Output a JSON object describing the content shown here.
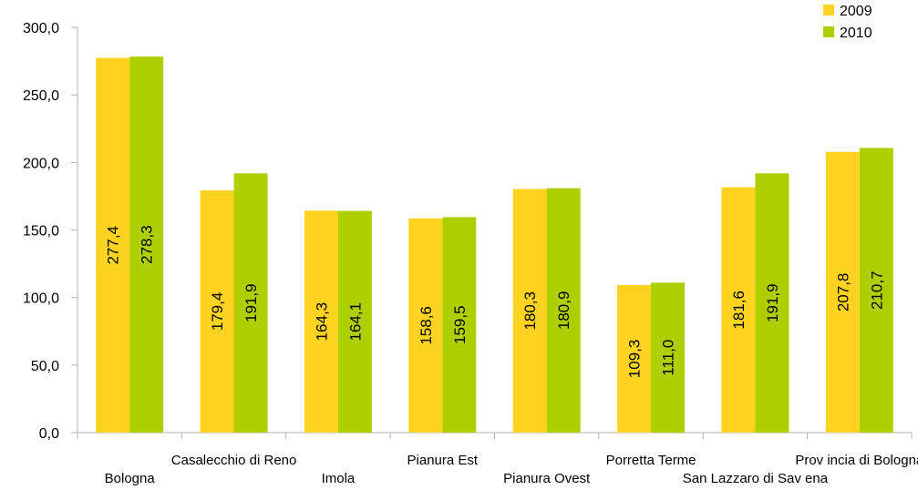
{
  "chart_data": {
    "type": "bar",
    "title": "",
    "xlabel": "",
    "ylabel": "",
    "ylim": [
      0,
      300
    ],
    "yticks": [
      0,
      50,
      100,
      150,
      200,
      250,
      300
    ],
    "ytick_labels": [
      "0,0",
      "50,0",
      "100,0",
      "150,0",
      "200,0",
      "250,0",
      "300,0"
    ],
    "grid": false,
    "legend_position": "top-right",
    "categories": [
      "Bologna",
      "Casalecchio di Reno",
      "Imola",
      "Pianura Est",
      "Pianura Ovest",
      "Porretta Terme",
      "San Lazzaro di Sav ena",
      "Prov incia di Bologna"
    ],
    "series": [
      {
        "name": "2009",
        "color": "#FFD320",
        "values": [
          277.4,
          179.4,
          164.3,
          158.6,
          180.3,
          109.3,
          181.6,
          207.8
        ],
        "labels": [
          "277,4",
          "179,4",
          "164,3",
          "158,6",
          "180,3",
          "109,3",
          "181,6",
          "207,8"
        ]
      },
      {
        "name": "2010",
        "color": "#AECF00",
        "values": [
          278.3,
          191.9,
          164.1,
          159.5,
          180.9,
          111.0,
          191.9,
          210.7
        ],
        "labels": [
          "278,3",
          "191,9",
          "164,1",
          "159,5",
          "180,9",
          "111,0",
          "191,9",
          "210,7"
        ]
      }
    ]
  }
}
